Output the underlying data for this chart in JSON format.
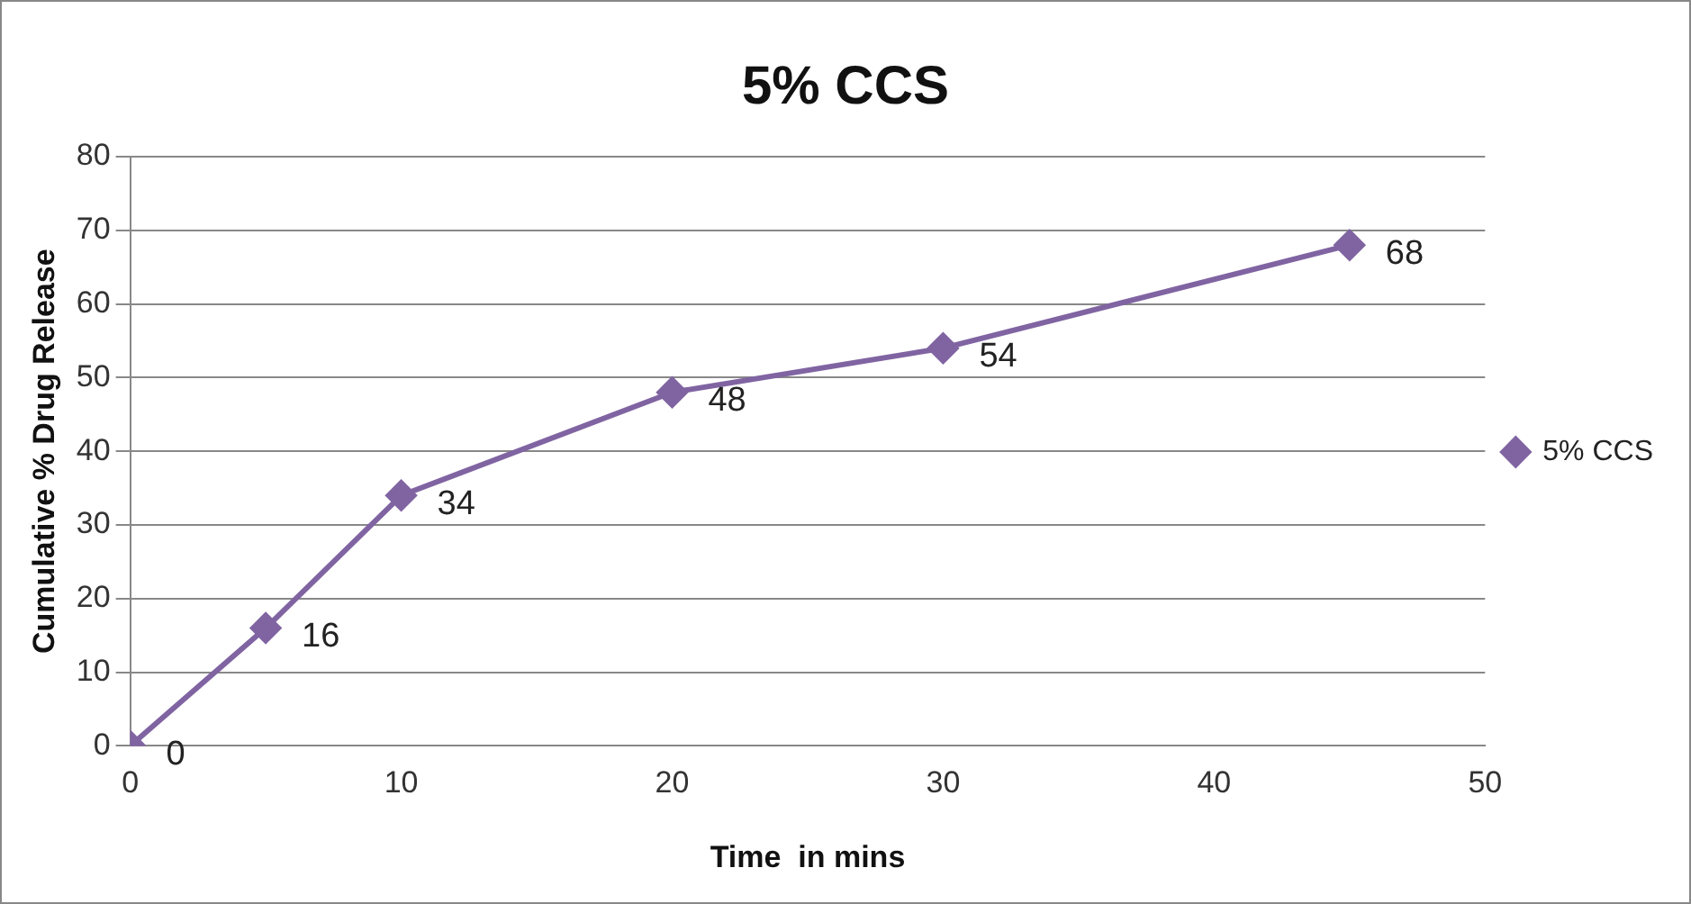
{
  "chart_data": {
    "type": "line",
    "title": "5% CCS",
    "xlabel": "Time  in mins",
    "ylabel": "Cumulative % Drug Release",
    "x": [
      0,
      5,
      10,
      20,
      30,
      45
    ],
    "series": [
      {
        "name": "5% CCS",
        "color": "#8064a2",
        "values": [
          0,
          16,
          34,
          48,
          54,
          68
        ]
      }
    ],
    "xlim": [
      0,
      50
    ],
    "xticks": [
      0,
      10,
      20,
      30,
      40,
      50
    ],
    "ylim": [
      0,
      80
    ],
    "yticks": [
      0,
      10,
      20,
      30,
      40,
      50,
      60,
      70,
      80
    ],
    "grid": "y",
    "legend": "right",
    "marker": "diamond",
    "line_style": "solid",
    "data_labels": true
  }
}
